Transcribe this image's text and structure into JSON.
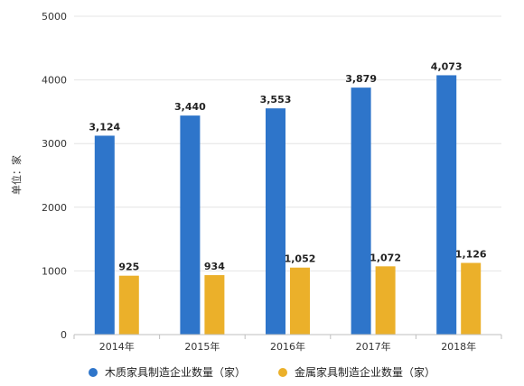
{
  "chart_data": {
    "type": "bar",
    "categories": [
      "2014年",
      "2015年",
      "2016年",
      "2017年",
      "2018年"
    ],
    "series": [
      {
        "name": "木质家具制造企业数量（家）",
        "values": [
          3124,
          3440,
          3553,
          3879,
          4073
        ],
        "labels": [
          "3,124",
          "3,440",
          "3,553",
          "3,879",
          "4,073"
        ],
        "color": "#2E75CA"
      },
      {
        "name": "金属家具制造企业数量（家）",
        "values": [
          925,
          934,
          1052,
          1072,
          1126
        ],
        "labels": [
          "925",
          "934",
          "1,052",
          "1,072",
          "1,126"
        ],
        "color": "#EBB02A"
      }
    ],
    "ylabel": "单位：家",
    "ylim": [
      0,
      5000
    ],
    "yticks": [
      0,
      1000,
      2000,
      3000,
      4000,
      5000
    ],
    "grid": true,
    "legend": "bottom"
  }
}
